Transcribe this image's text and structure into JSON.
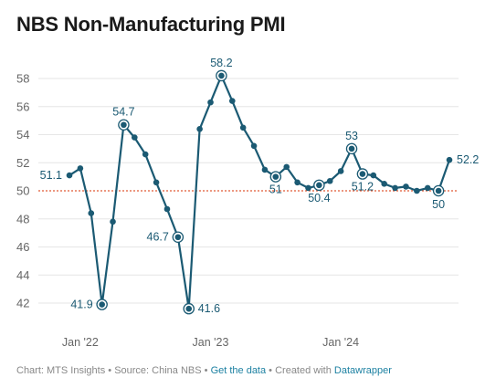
{
  "title": "NBS Non-Manufacturing PMI",
  "footer": {
    "chart_by": "Chart: MTS Insights",
    "source": "Source: China NBS",
    "get_data": "Get the data",
    "created_with": "Created with",
    "datawrapper": "Datawrapper",
    "separator": "•"
  },
  "colors": {
    "line": "#1b5a73",
    "reference": "#e05a36",
    "label": "#1b5a73",
    "axis_text": "#666666",
    "grid": "#e6e6e6"
  },
  "chart_data": {
    "type": "line",
    "title": "NBS Non-Manufacturing PMI",
    "xlabel": "",
    "ylabel": "",
    "ylim": [
      41,
      59
    ],
    "yticks": [
      42,
      44,
      46,
      48,
      50,
      52,
      54,
      56,
      58
    ],
    "xticks": [
      {
        "label": "Jan '22",
        "x": "2022-01"
      },
      {
        "label": "Jan '23",
        "x": "2023-01"
      },
      {
        "label": "Jan '24",
        "x": "2024-01"
      }
    ],
    "grid": true,
    "reference_line": 50,
    "series": [
      {
        "points": [
          {
            "x": "2021-12",
            "y": 51.1,
            "label": "51.1"
          },
          {
            "x": "2022-01",
            "y": 51.6
          },
          {
            "x": "2022-02",
            "y": 48.4
          },
          {
            "x": "2022-03",
            "y": 41.9,
            "label": "41.9",
            "highlight": true
          },
          {
            "x": "2022-04",
            "y": 47.8
          },
          {
            "x": "2022-05",
            "y": 54.7,
            "label": "54.7",
            "highlight": true
          },
          {
            "x": "2022-06",
            "y": 53.8
          },
          {
            "x": "2022-07",
            "y": 52.6
          },
          {
            "x": "2022-08",
            "y": 50.6
          },
          {
            "x": "2022-09",
            "y": 48.7
          },
          {
            "x": "2022-10",
            "y": 46.7,
            "label": "46.7",
            "highlight": true
          },
          {
            "x": "2022-11",
            "y": 41.6,
            "label": "41.6",
            "highlight": true
          },
          {
            "x": "2022-12",
            "y": 54.4
          },
          {
            "x": "2023-01",
            "y": 56.3
          },
          {
            "x": "2023-02",
            "y": 58.2,
            "label": "58.2",
            "highlight": true
          },
          {
            "x": "2023-03",
            "y": 56.4
          },
          {
            "x": "2023-04",
            "y": 54.5
          },
          {
            "x": "2023-05",
            "y": 53.2
          },
          {
            "x": "2023-06",
            "y": 51.5
          },
          {
            "x": "2023-07",
            "y": 51.0,
            "label": "51",
            "highlight": true
          },
          {
            "x": "2023-08",
            "y": 51.7
          },
          {
            "x": "2023-09",
            "y": 50.6
          },
          {
            "x": "2023-10",
            "y": 50.2
          },
          {
            "x": "2023-11",
            "y": 50.4,
            "label": "50.4",
            "highlight": true
          },
          {
            "x": "2023-12",
            "y": 50.7
          },
          {
            "x": "2024-01",
            "y": 51.4
          },
          {
            "x": "2024-02",
            "y": 53.0,
            "label": "53",
            "highlight": true
          },
          {
            "x": "2024-03",
            "y": 51.2,
            "label": "51.2",
            "highlight": true
          },
          {
            "x": "2024-04",
            "y": 51.1
          },
          {
            "x": "2024-05",
            "y": 50.5
          },
          {
            "x": "2024-06",
            "y": 50.2
          },
          {
            "x": "2024-07",
            "y": 50.3
          },
          {
            "x": "2024-08",
            "y": 50.0
          },
          {
            "x": "2024-09",
            "y": 50.2
          },
          {
            "x": "2024-10",
            "y": 50.0,
            "label": "50",
            "highlight": true
          },
          {
            "x": "2024-11",
            "y": 52.2,
            "label": "52.2"
          }
        ]
      }
    ]
  }
}
